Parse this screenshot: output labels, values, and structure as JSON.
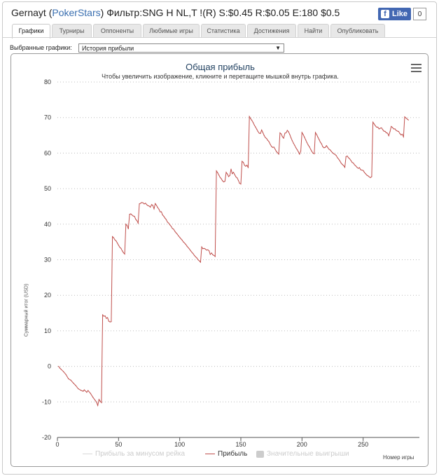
{
  "header": {
    "player": "Gernayt",
    "site": "PokerStars",
    "filter_text": "Фильтр:SNG H NL,T !(R) S:$0.45 R:$0.05 E:180 $0.5",
    "like_label": "Like",
    "like_count": "0"
  },
  "tabs": [
    {
      "label": "Графики",
      "active": true
    },
    {
      "label": "Турниры"
    },
    {
      "label": "Оппоненты"
    },
    {
      "label": "Любимые игры"
    },
    {
      "label": "Статистика"
    },
    {
      "label": "Достижения"
    },
    {
      "label": "Найти"
    },
    {
      "label": "Опубликовать"
    }
  ],
  "selector": {
    "label": "Выбранные графики:",
    "value": "История прибыли"
  },
  "icons": {
    "fb": "facebook-icon",
    "menu": "hamburger-menu-icon",
    "dropdown": "dropdown-arrow-icon"
  },
  "chart_data": {
    "type": "line",
    "title": "Общая прибыль",
    "subtitle": "Чтобы увеличить изображение, кликните и перетащите мышкой внутрь графика.",
    "xlabel": "Номер игры",
    "ylabel": "Суммарный итог (USD)",
    "xlim": [
      0,
      296
    ],
    "ylim": [
      -20,
      80
    ],
    "xticks": [
      0,
      50,
      100,
      150,
      200,
      250
    ],
    "yticks": [
      -20,
      -10,
      0,
      10,
      20,
      30,
      40,
      50,
      60,
      70,
      80
    ],
    "grid": true,
    "legend_position": "bottom",
    "series": [
      {
        "name": "Прибыль",
        "color": "#c0504d",
        "points": [
          [
            1,
            0
          ],
          [
            2,
            -0.5
          ],
          [
            3,
            -0.8
          ],
          [
            5,
            -1.5
          ],
          [
            7,
            -2.3
          ],
          [
            9,
            -3.5
          ],
          [
            11,
            -3.9
          ],
          [
            13,
            -4.7
          ],
          [
            15,
            -5.4
          ],
          [
            17,
            -6.3
          ],
          [
            19,
            -6.7
          ],
          [
            21,
            -7
          ],
          [
            22,
            -6.6
          ],
          [
            24,
            -7.3
          ],
          [
            25,
            -6.8
          ],
          [
            27,
            -7.6
          ],
          [
            29,
            -8.7
          ],
          [
            31,
            -9.6
          ],
          [
            32,
            -10.1
          ],
          [
            33,
            -11
          ],
          [
            34,
            -9.3
          ],
          [
            35,
            -9.8
          ],
          [
            36,
            -10.2
          ],
          [
            37,
            14.5
          ],
          [
            38,
            14.1
          ],
          [
            39,
            14.2
          ],
          [
            40,
            13.5
          ],
          [
            41,
            13.7
          ],
          [
            42,
            12.7
          ],
          [
            43,
            12.5
          ],
          [
            44,
            12.6
          ],
          [
            45,
            36.5
          ],
          [
            46,
            36.2
          ],
          [
            47,
            35.6
          ],
          [
            48,
            35.3
          ],
          [
            49,
            34.7
          ],
          [
            50,
            34.1
          ],
          [
            51,
            33.5
          ],
          [
            52,
            33.2
          ],
          [
            53,
            32.5
          ],
          [
            54,
            32
          ],
          [
            55,
            31.6
          ],
          [
            56,
            40
          ],
          [
            57,
            39.6
          ],
          [
            58,
            38.7
          ],
          [
            59,
            42.8
          ],
          [
            60,
            42.9
          ],
          [
            61,
            42.6
          ],
          [
            62,
            42.3
          ],
          [
            63,
            42.2
          ],
          [
            64,
            41.4
          ],
          [
            65,
            41
          ],
          [
            66,
            40.3
          ],
          [
            67,
            45.7
          ],
          [
            68,
            45.9
          ],
          [
            69,
            46.1
          ],
          [
            70,
            46
          ],
          [
            71,
            45.7
          ],
          [
            72,
            45.9
          ],
          [
            73,
            45.5
          ],
          [
            74,
            45.2
          ],
          [
            75,
            45.1
          ],
          [
            76,
            44.8
          ],
          [
            77,
            45.5
          ],
          [
            78,
            45.3
          ],
          [
            79,
            44.3
          ],
          [
            80,
            45.8
          ],
          [
            81,
            45.3
          ],
          [
            82,
            44.7
          ],
          [
            83,
            44.2
          ],
          [
            84,
            43.5
          ],
          [
            85,
            43.5
          ],
          [
            86,
            42.6
          ],
          [
            87,
            42.2
          ],
          [
            88,
            41.7
          ],
          [
            89,
            41.3
          ],
          [
            90,
            40.6
          ],
          [
            91,
            40.3
          ],
          [
            92,
            39.8
          ],
          [
            93,
            39.4
          ],
          [
            94,
            38.8
          ],
          [
            95,
            38.6
          ],
          [
            96,
            38
          ],
          [
            97,
            37.6
          ],
          [
            98,
            37.2
          ],
          [
            99,
            36.7
          ],
          [
            100,
            36.3
          ],
          [
            101,
            35.9
          ],
          [
            102,
            35.5
          ],
          [
            103,
            35
          ],
          [
            104,
            34.7
          ],
          [
            105,
            34.3
          ],
          [
            106,
            33.8
          ],
          [
            107,
            33.4
          ],
          [
            108,
            33
          ],
          [
            109,
            32.5
          ],
          [
            110,
            32.1
          ],
          [
            111,
            31.7
          ],
          [
            112,
            31.2
          ],
          [
            113,
            30.8
          ],
          [
            114,
            30.5
          ],
          [
            115,
            30
          ],
          [
            116,
            29.7
          ],
          [
            117,
            29.3
          ],
          [
            118,
            33.6
          ],
          [
            119,
            33.1
          ],
          [
            120,
            33.2
          ],
          [
            121,
            33
          ],
          [
            122,
            32.7
          ],
          [
            123,
            32.8
          ],
          [
            124,
            32.5
          ],
          [
            125,
            31.5
          ],
          [
            126,
            31.9
          ],
          [
            127,
            31.4
          ],
          [
            128,
            31.2
          ],
          [
            129,
            30.9
          ],
          [
            130,
            55
          ],
          [
            131,
            54.5
          ],
          [
            132,
            53.8
          ],
          [
            133,
            53.2
          ],
          [
            134,
            52.8
          ],
          [
            135,
            52.2
          ],
          [
            136,
            51.9
          ],
          [
            137,
            52.1
          ],
          [
            138,
            54.6
          ],
          [
            139,
            54.1
          ],
          [
            140,
            53.4
          ],
          [
            141,
            53.7
          ],
          [
            142,
            55.5
          ],
          [
            143,
            54.2
          ],
          [
            144,
            54.6
          ],
          [
            145,
            53.9
          ],
          [
            146,
            53.3
          ],
          [
            147,
            53
          ],
          [
            148,
            52.3
          ],
          [
            149,
            51.5
          ],
          [
            150,
            51.3
          ],
          [
            151,
            57.7
          ],
          [
            152,
            57.4
          ],
          [
            153,
            56.6
          ],
          [
            154,
            56.3
          ],
          [
            155,
            56.6
          ],
          [
            156,
            55.9
          ],
          [
            157,
            70.3
          ],
          [
            158,
            69.7
          ],
          [
            159,
            69.2
          ],
          [
            160,
            68.6
          ],
          [
            161,
            67.9
          ],
          [
            162,
            67.3
          ],
          [
            163,
            66.7
          ],
          [
            164,
            66.1
          ],
          [
            165,
            65.6
          ],
          [
            166,
            65.5
          ],
          [
            167,
            66.5
          ],
          [
            168,
            65.8
          ],
          [
            169,
            65
          ],
          [
            170,
            64.4
          ],
          [
            171,
            64.1
          ],
          [
            172,
            63.6
          ],
          [
            173,
            63.2
          ],
          [
            174,
            62.5
          ],
          [
            175,
            61.9
          ],
          [
            176,
            61.6
          ],
          [
            177,
            61.7
          ],
          [
            178,
            61.1
          ],
          [
            179,
            60.5
          ],
          [
            180,
            60.1
          ],
          [
            181,
            59.7
          ],
          [
            182,
            65.7
          ],
          [
            183,
            65.4
          ],
          [
            184,
            64.6
          ],
          [
            185,
            64.2
          ],
          [
            186,
            65.6
          ],
          [
            187,
            65.7
          ],
          [
            188,
            66.4
          ],
          [
            189,
            66
          ],
          [
            190,
            65.2
          ],
          [
            191,
            64.3
          ],
          [
            192,
            63.5
          ],
          [
            193,
            62.8
          ],
          [
            194,
            62.2
          ],
          [
            195,
            61.5
          ],
          [
            196,
            61
          ],
          [
            197,
            60.4
          ],
          [
            198,
            59.7
          ],
          [
            199,
            60.6
          ],
          [
            200,
            65.8
          ],
          [
            201,
            65.2
          ],
          [
            202,
            64.5
          ],
          [
            203,
            63.7
          ],
          [
            204,
            63
          ],
          [
            205,
            62.3
          ],
          [
            206,
            61.8
          ],
          [
            207,
            61.1
          ],
          [
            208,
            60.5
          ],
          [
            209,
            60
          ],
          [
            210,
            59.8
          ],
          [
            211,
            65.8
          ],
          [
            212,
            65.2
          ],
          [
            213,
            64.5
          ],
          [
            214,
            63.8
          ],
          [
            215,
            63.1
          ],
          [
            216,
            62.6
          ],
          [
            217,
            61.8
          ],
          [
            218,
            61.5
          ],
          [
            219,
            61.6
          ],
          [
            220,
            62.1
          ],
          [
            221,
            61.6
          ],
          [
            222,
            61.1
          ],
          [
            223,
            60.9
          ],
          [
            224,
            60.5
          ],
          [
            225,
            60.1
          ],
          [
            226,
            59.8
          ],
          [
            227,
            59.6
          ],
          [
            228,
            59.3
          ],
          [
            229,
            58.7
          ],
          [
            230,
            58.3
          ],
          [
            231,
            57.8
          ],
          [
            232,
            57.2
          ],
          [
            233,
            56.8
          ],
          [
            234,
            56.5
          ],
          [
            235,
            56
          ],
          [
            236,
            59
          ],
          [
            237,
            59.2
          ],
          [
            238,
            58.7
          ],
          [
            239,
            58.4
          ],
          [
            240,
            57.9
          ],
          [
            241,
            57.4
          ],
          [
            242,
            57.2
          ],
          [
            243,
            56.7
          ],
          [
            244,
            56.4
          ],
          [
            245,
            56
          ],
          [
            246,
            55.7
          ],
          [
            247,
            55.9
          ],
          [
            248,
            55.3
          ],
          [
            249,
            55.2
          ],
          [
            250,
            55.1
          ],
          [
            251,
            54.6
          ],
          [
            252,
            54.2
          ],
          [
            253,
            53.8
          ],
          [
            254,
            53.6
          ],
          [
            255,
            53.3
          ],
          [
            256,
            53.1
          ],
          [
            257,
            53.4
          ],
          [
            258,
            68.7
          ],
          [
            259,
            68.2
          ],
          [
            260,
            67.7
          ],
          [
            261,
            67.3
          ],
          [
            262,
            67.3
          ],
          [
            263,
            66.8
          ],
          [
            264,
            67
          ],
          [
            265,
            67.1
          ],
          [
            266,
            66.6
          ],
          [
            267,
            66.2
          ],
          [
            268,
            66.1
          ],
          [
            269,
            65.7
          ],
          [
            270,
            65.6
          ],
          [
            271,
            64.9
          ],
          [
            272,
            66.1
          ],
          [
            273,
            67.5
          ],
          [
            274,
            67.2
          ],
          [
            275,
            66.8
          ],
          [
            276,
            66.8
          ],
          [
            277,
            66.4
          ],
          [
            278,
            66.2
          ],
          [
            279,
            66.1
          ],
          [
            280,
            65.5
          ],
          [
            281,
            65.1
          ],
          [
            282,
            65.3
          ],
          [
            283,
            64.6
          ],
          [
            284,
            70.2
          ],
          [
            285,
            69.9
          ],
          [
            286,
            69.6
          ],
          [
            287,
            69.3
          ]
        ]
      }
    ],
    "legend": [
      {
        "label": "Прибыль за минусом рейка",
        "color": "#d9d9d9",
        "visible": false,
        "marker": "line"
      },
      {
        "label": "Прибыль",
        "color": "#c0504d",
        "visible": true,
        "marker": "line"
      },
      {
        "label": "Значительные выигрыши",
        "color": "#cccccc",
        "visible": false,
        "marker": "box"
      }
    ]
  }
}
